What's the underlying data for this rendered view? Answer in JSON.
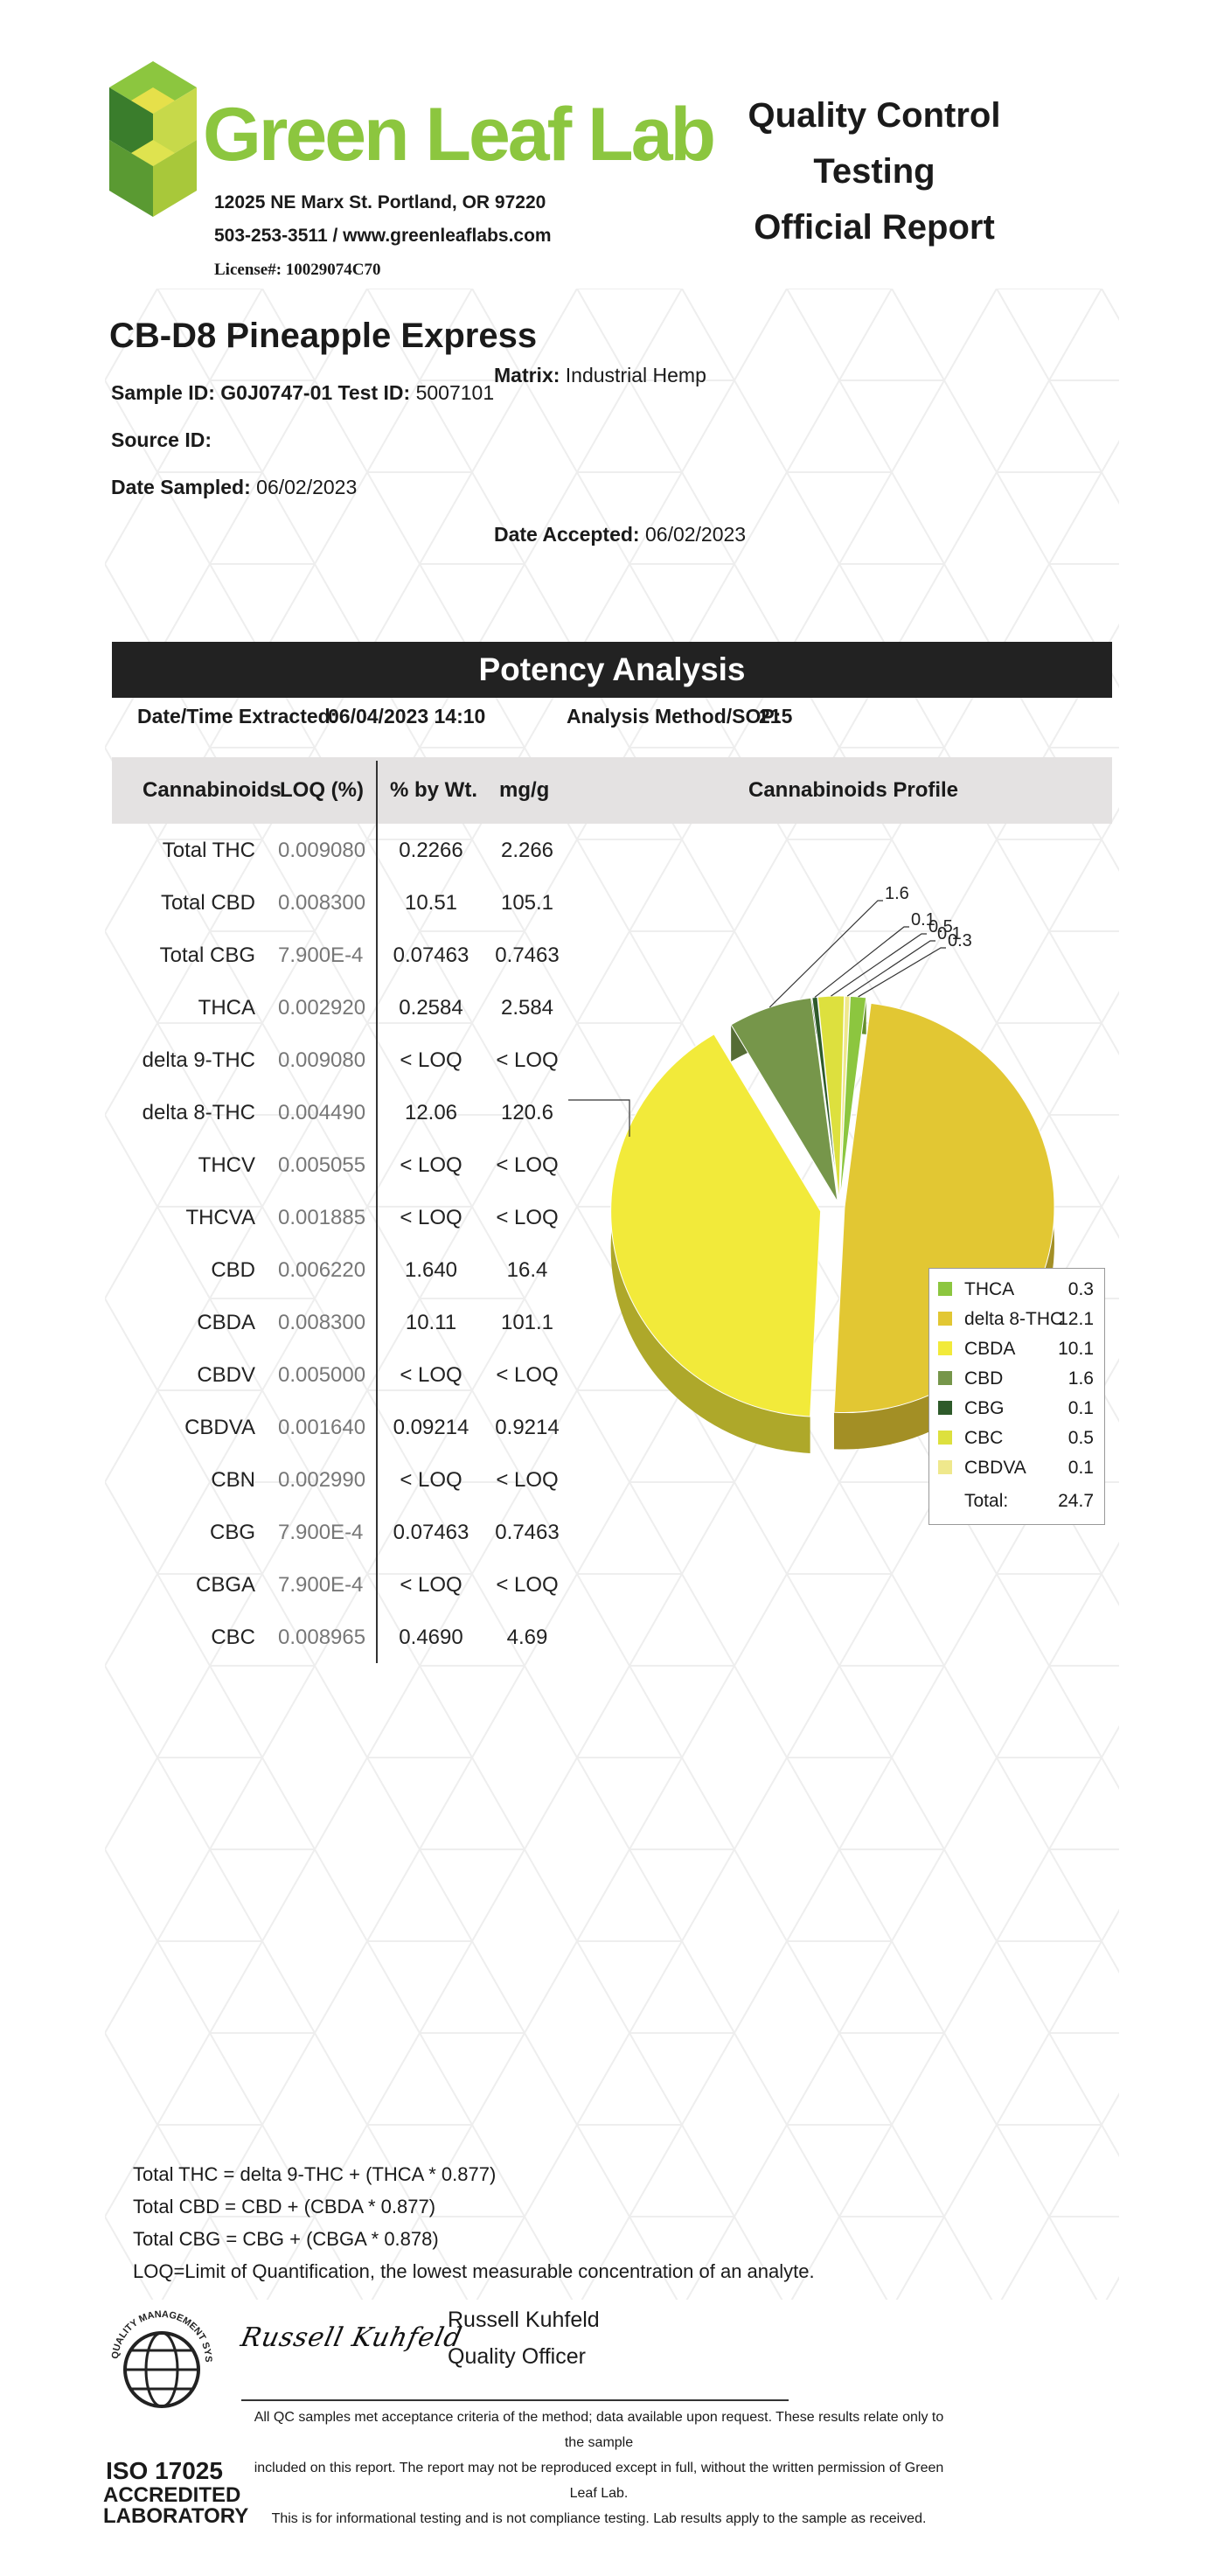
{
  "header": {
    "brand_name": "Green Leaf Lab",
    "address": "12025 NE Marx St. Portland, OR 97220",
    "contact": "503-253-3511 / www.greenleaflabs.com",
    "license": "License#: 10029074C70",
    "report_title_line1": "Quality Control Testing",
    "report_title_line2": "Official Report"
  },
  "sample": {
    "product_name": "CB-D8 Pineapple Express",
    "sample_id_label": "Sample ID:",
    "sample_id": "G0J0747-01",
    "test_id_label": "Test ID:",
    "test_id": "5007101",
    "source_id_label": "Source ID:",
    "date_sampled_label": "Date Sampled:",
    "date_sampled": "06/02/2023",
    "matrix_label": "Matrix:",
    "matrix": "Industrial Hemp",
    "date_accepted_label": "Date Accepted:",
    "date_accepted": "06/02/2023"
  },
  "potency": {
    "section_title": "Potency Analysis",
    "extracted_label": "Date/Time Extracted:",
    "extracted_value": "06/04/2023  14:10",
    "method_label": "Analysis Method/SOP:",
    "method_value": "215",
    "columns": [
      "Cannabinoids",
      "LOQ (%)",
      "% by Wt.",
      "mg/g"
    ],
    "profile_title": "Cannabinoids Profile",
    "rows": [
      {
        "name": "Total THC",
        "loq": "0.009080",
        "pct": "0.2266",
        "mg": "2.266"
      },
      {
        "name": "Total CBD",
        "loq": "0.008300",
        "pct": "10.51",
        "mg": "105.1"
      },
      {
        "name": "Total CBG",
        "loq": "7.900E-4",
        "pct": "0.07463",
        "mg": "0.7463"
      },
      {
        "name": "THCA",
        "loq": "0.002920",
        "pct": "0.2584",
        "mg": "2.584"
      },
      {
        "name": "delta 9-THC",
        "loq": "0.009080",
        "pct": "< LOQ",
        "mg": "< LOQ"
      },
      {
        "name": "delta 8-THC",
        "loq": "0.004490",
        "pct": "12.06",
        "mg": "120.6"
      },
      {
        "name": "THCV",
        "loq": "0.005055",
        "pct": "< LOQ",
        "mg": "< LOQ"
      },
      {
        "name": "THCVA",
        "loq": "0.001885",
        "pct": "< LOQ",
        "mg": "< LOQ"
      },
      {
        "name": "CBD",
        "loq": "0.006220",
        "pct": "1.640",
        "mg": "16.4"
      },
      {
        "name": "CBDA",
        "loq": "0.008300",
        "pct": "10.11",
        "mg": "101.1"
      },
      {
        "name": "CBDV",
        "loq": "0.005000",
        "pct": "< LOQ",
        "mg": "< LOQ"
      },
      {
        "name": "CBDVA",
        "loq": "0.001640",
        "pct": "0.09214",
        "mg": "0.9214"
      },
      {
        "name": "CBN",
        "loq": "0.002990",
        "pct": "< LOQ",
        "mg": "< LOQ"
      },
      {
        "name": "CBG",
        "loq": "7.900E-4",
        "pct": "0.07463",
        "mg": "0.7463"
      },
      {
        "name": "CBGA",
        "loq": "7.900E-4",
        "pct": "< LOQ",
        "mg": "< LOQ"
      },
      {
        "name": "CBC",
        "loq": "0.008965",
        "pct": "0.4690",
        "mg": "4.69"
      }
    ]
  },
  "chart_data": {
    "type": "pie",
    "title": "Cannabinoids Profile",
    "legend_position": "bottom-right",
    "slices": [
      {
        "name": "THCA",
        "value": 0.3,
        "color": "#8cc63f"
      },
      {
        "name": "delta 8-THC",
        "value": 12.1,
        "color": "#e2c733"
      },
      {
        "name": "CBDA",
        "value": 10.1,
        "color": "#f2ea3a"
      },
      {
        "name": "CBD",
        "value": 1.6,
        "color": "#76964a"
      },
      {
        "name": "CBG",
        "value": 0.1,
        "color": "#2e5a2a"
      },
      {
        "name": "CBC",
        "value": 0.5,
        "color": "#dde03e"
      },
      {
        "name": "CBDVA",
        "value": 0.1,
        "color": "#efe88c"
      }
    ],
    "callout_labels": [
      "1.6",
      "0.1",
      "0.5",
      "0.1",
      "0.3"
    ],
    "total_label": "Total:",
    "total_value": "24.7"
  },
  "notes": {
    "line1": "Total THC =  delta 9-THC + (THCA * 0.877)",
    "line2": "Total CBD =  CBD + (CBDA * 0.877)",
    "line3": "Total CBG = CBG + (CBGA * 0.878)",
    "line4": "LOQ=Limit of Quantification, the lowest measurable concentration of an analyte."
  },
  "footer": {
    "seal_text": "QUALITY MANAGEMENT SYSTEM",
    "iso_line1": "ISO 17025",
    "iso_line2": "ACCREDITED",
    "iso_line3": "LABORATORY",
    "signature": "Russell Kuhfeld",
    "signer_name": "Russell Kuhfeld",
    "signer_title": "Quality Officer",
    "disclaimer1": "All QC samples met acceptance criteria of the method; data available upon request. These results relate only to the sample",
    "disclaimer2": "included on this report. The report may not be reproduced except in full, without the written permission of Green Leaf Lab.",
    "disclaimer3": "This is for informational testing and is not compliance testing. Lab results apply to the sample as received."
  }
}
